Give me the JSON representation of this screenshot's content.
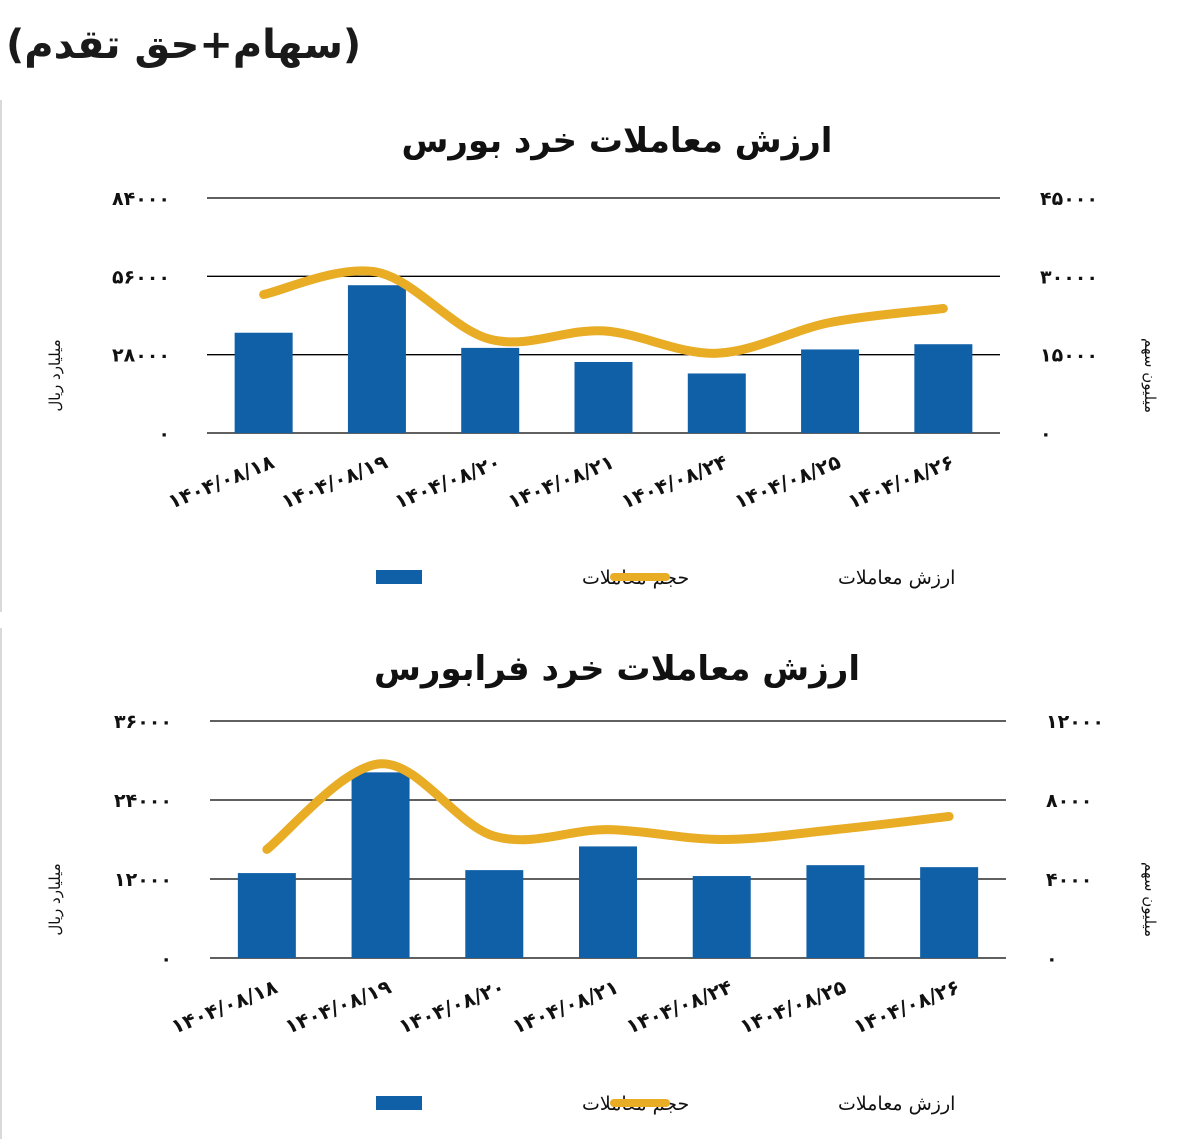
{
  "page": {
    "heading": "(سهام+حق تقدم)"
  },
  "colors": {
    "bar": "#1060a8",
    "line": "#e8ac25",
    "grid": "#000000"
  },
  "chart_data": [
    {
      "type": "bar",
      "title": "ارزش معاملات خرد بورس",
      "ylabel": "میلیارد ریال",
      "y2label": "میلیون سهم",
      "categories": [
        "۱۴۰۴/۰۸/۱۸",
        "۱۴۰۴/۰۸/۱۹",
        "۱۴۰۴/۰۸/۲۰",
        "۱۴۰۴/۰۸/۲۱",
        "۱۴۰۴/۰۸/۲۴",
        "۱۴۰۴/۰۸/۲۵",
        "۱۴۰۴/۰۸/۲۶"
      ],
      "ylim": [
        0,
        84000
      ],
      "y2lim": [
        0,
        45000
      ],
      "yticks": [
        "۰",
        "۲۸۰۰۰",
        "۵۶۰۰۰",
        "۸۴۰۰۰"
      ],
      "y2ticks": [
        "۰",
        "۱۵۰۰۰",
        "۳۰۰۰۰",
        "۴۵۰۰۰"
      ],
      "legend": {
        "placement": "bottom",
        "bar_name": "حجم معاملات",
        "line_name": "ارزش معاملات"
      },
      "series": [
        {
          "name": "حجم معاملات",
          "type": "bar",
          "axis": "right",
          "values": [
            19200,
            28300,
            16300,
            13600,
            11400,
            16000,
            17000
          ]
        },
        {
          "name": "ارزش معاملات",
          "type": "line",
          "axis": "left",
          "values": [
            49500,
            57500,
            33500,
            36500,
            28500,
            39500,
            44500
          ]
        }
      ]
    },
    {
      "type": "bar",
      "title": "ارزش معاملات خرد فرابورس",
      "ylabel": "میلیارد ریال",
      "y2label": "میلیون سهم",
      "categories": [
        "۱۴۰۴/۰۸/۱۸",
        "۱۴۰۴/۰۸/۱۹",
        "۱۴۰۴/۰۸/۲۰",
        "۱۴۰۴/۰۸/۲۱",
        "۱۴۰۴/۰۸/۲۴",
        "۱۴۰۴/۰۸/۲۵",
        "۱۴۰۴/۰۸/۲۶"
      ],
      "ylim": [
        0,
        36000
      ],
      "y2lim": [
        0,
        12000
      ],
      "yticks": [
        "۰",
        "۱۲۰۰۰",
        "۲۴۰۰۰",
        "۳۶۰۰۰"
      ],
      "y2ticks": [
        "۰",
        "۴۰۰۰",
        "۸۰۰۰",
        "۱۲۰۰۰"
      ],
      "legend": {
        "placement": "bottom",
        "bar_name": "حجم معاملات",
        "line_name": "ارزش معاملات"
      },
      "series": [
        {
          "name": "حجم معاملات",
          "type": "bar",
          "axis": "right",
          "values": [
            4300,
            9400,
            4450,
            5650,
            4150,
            4700,
            4600
          ]
        },
        {
          "name": "ارزش معاملات",
          "type": "line",
          "axis": "left",
          "values": [
            16500,
            29500,
            18500,
            19500,
            18000,
            19500,
            21500
          ]
        }
      ]
    }
  ]
}
